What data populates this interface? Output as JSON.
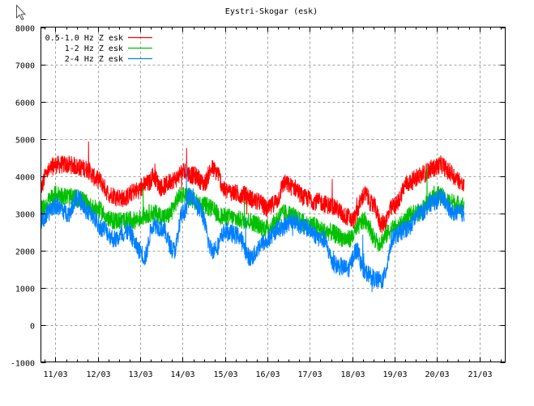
{
  "chart_data": {
    "type": "line",
    "title": "Eystri-Skogar (esk)",
    "xlabel": "",
    "ylabel": "",
    "xlim": [
      10.656,
      21.61
    ],
    "ylim": [
      -1000,
      8000
    ],
    "grid": true,
    "legend_placement": "top-left",
    "y_ticks": [
      "-1000",
      "0",
      "1000",
      "2000",
      "3000",
      "4000",
      "5000",
      "6000",
      "7000",
      "8000"
    ],
    "x_ticks": [
      {
        "day": 11,
        "label": "11/03"
      },
      {
        "day": 12,
        "label": "12/03"
      },
      {
        "day": 13,
        "label": "13/03"
      },
      {
        "day": 14,
        "label": "14/03"
      },
      {
        "day": 15,
        "label": "15/03"
      },
      {
        "day": 16,
        "label": "16/03"
      },
      {
        "day": 17,
        "label": "17/03"
      },
      {
        "day": 18,
        "label": "18/03"
      },
      {
        "day": 19,
        "label": "19/03"
      },
      {
        "day": 20,
        "label": "20/03"
      },
      {
        "day": 21,
        "label": "21/03"
      }
    ],
    "series": [
      {
        "name": "0.5-1.0 Hz Z esk",
        "color": "#ff0000",
        "x": [
          10.66,
          10.8,
          11.0,
          11.3,
          11.7,
          12.0,
          12.3,
          12.6,
          12.9,
          13.2,
          13.3,
          13.5,
          13.8,
          14.0,
          14.3,
          14.5,
          14.7,
          14.8,
          15.0,
          15.4,
          15.8,
          16.0,
          16.2,
          16.4,
          16.6,
          16.9,
          17.2,
          17.5,
          17.9,
          18.0,
          18.3,
          18.5,
          18.7,
          19.0,
          19.3,
          19.6,
          19.9,
          20.1,
          20.3,
          20.5,
          20.64
        ],
        "y": [
          3700,
          4100,
          4300,
          4300,
          4200,
          3900,
          3500,
          3400,
          3600,
          3800,
          4000,
          3700,
          3900,
          4100,
          4000,
          3800,
          4200,
          4100,
          3600,
          3500,
          3300,
          3100,
          3300,
          3800,
          3700,
          3400,
          3300,
          3200,
          2900,
          2800,
          3500,
          3200,
          2700,
          3200,
          3800,
          4000,
          4200,
          4300,
          4100,
          3900,
          3700
        ]
      },
      {
        "name": "1-2 Hz Z esk",
        "color": "#00c000",
        "x": [
          10.66,
          11.0,
          11.5,
          12.0,
          12.3,
          12.8,
          13.3,
          13.6,
          14.0,
          14.5,
          15.0,
          15.5,
          16.0,
          16.4,
          17.0,
          17.4,
          17.9,
          18.3,
          18.6,
          19.0,
          19.5,
          20.0,
          20.3,
          20.64
        ],
        "y": [
          3100,
          3500,
          3400,
          3100,
          2800,
          2800,
          3000,
          2900,
          3500,
          3200,
          2900,
          2800,
          2600,
          3000,
          2700,
          2500,
          2300,
          2800,
          2200,
          2600,
          3000,
          3500,
          3300,
          3200
        ]
      },
      {
        "name": "2-4 Hz Z esk",
        "color": "#0080ff",
        "x": [
          10.66,
          11.0,
          11.3,
          11.5,
          11.8,
          12.1,
          12.4,
          12.7,
          13.0,
          13.1,
          13.3,
          13.5,
          13.8,
          14.0,
          14.2,
          14.4,
          14.7,
          14.8,
          15.0,
          15.3,
          15.6,
          15.9,
          16.3,
          16.6,
          16.9,
          17.3,
          17.6,
          17.9,
          18.1,
          18.3,
          18.6,
          18.7,
          19.0,
          19.3,
          19.6,
          19.9,
          20.1,
          20.4,
          20.64
        ],
        "y": [
          2800,
          3200,
          3000,
          3400,
          3000,
          2600,
          2300,
          2500,
          2000,
          1800,
          2700,
          2600,
          2000,
          3000,
          3500,
          3100,
          2000,
          2100,
          2500,
          2400,
          1800,
          2200,
          2600,
          2800,
          2600,
          2300,
          1600,
          1500,
          2000,
          1400,
          1200,
          1200,
          2400,
          2600,
          3000,
          3300,
          3400,
          3000,
          3000
        ]
      }
    ]
  }
}
